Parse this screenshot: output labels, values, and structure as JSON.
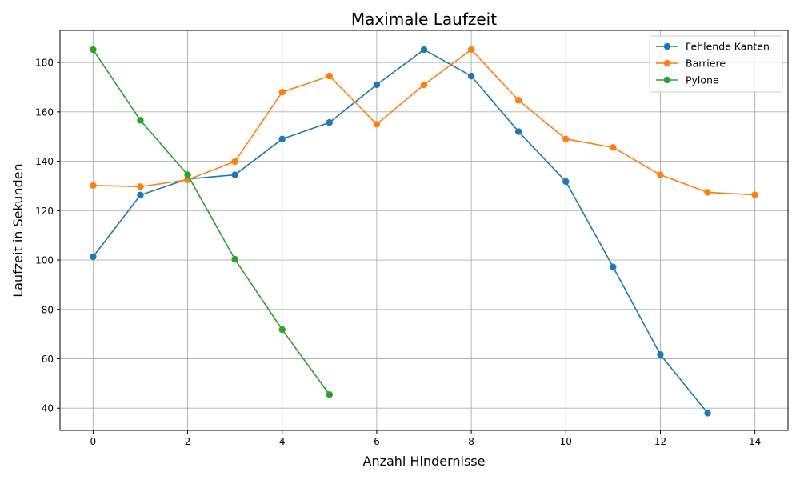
{
  "chart_data": {
    "type": "line",
    "title": "Maximale Laufzeit",
    "xlabel": "Anzahl Hindernisse",
    "ylabel": "Laufzeit in Sekunden",
    "xlim": [
      -0.7,
      14.7
    ],
    "ylim": [
      31,
      193
    ],
    "xticks": [
      0,
      2,
      4,
      6,
      8,
      10,
      12,
      14
    ],
    "yticks": [
      40,
      60,
      80,
      100,
      120,
      140,
      160,
      180
    ],
    "grid": true,
    "legend_position": "top-right",
    "series": [
      {
        "name": "Fehlende Kanten",
        "color": "#1f77b4",
        "x": [
          0,
          1,
          2,
          3,
          4,
          5,
          6,
          7,
          8,
          9,
          10,
          11,
          12,
          13
        ],
        "y": [
          101.3,
          126.3,
          132.8,
          134.5,
          149,
          155.7,
          171,
          185.2,
          174.5,
          152,
          131.8,
          97.2,
          61.7,
          38
        ]
      },
      {
        "name": "Barriere",
        "color": "#ff7f0e",
        "x": [
          0,
          1,
          2,
          3,
          4,
          5,
          6,
          7,
          8,
          9,
          10,
          11,
          12,
          13,
          14
        ],
        "y": [
          130.2,
          129.7,
          132.5,
          139.9,
          168,
          174.5,
          155,
          171,
          185.2,
          164.7,
          149,
          145.6,
          134.5,
          127.4,
          126.4
        ]
      },
      {
        "name": "Pylone",
        "color": "#2ca02c",
        "x": [
          0,
          1,
          2,
          3,
          4,
          5
        ],
        "y": [
          185.2,
          156.6,
          134.5,
          100.3,
          71.8,
          45.5
        ]
      }
    ]
  }
}
